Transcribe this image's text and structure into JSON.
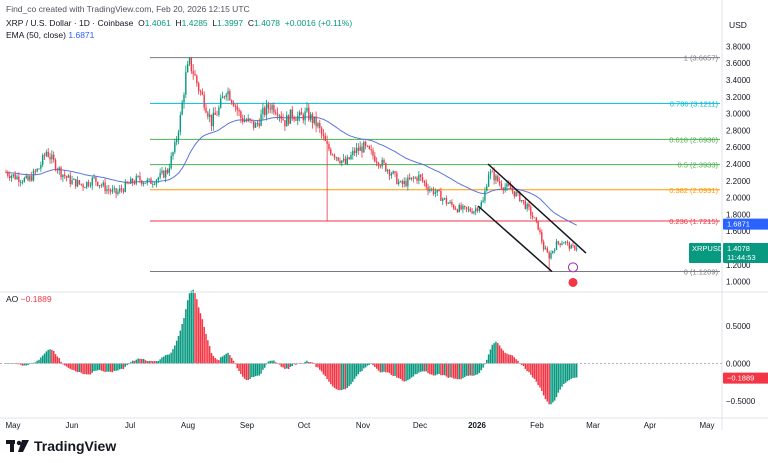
{
  "header": {
    "created": "Find_co created with TradingView.com, Feb 20, 2026 12:15 UTC",
    "symbol": "XRP / U.S. Dollar · 1D · Coinbase",
    "o_label": "O",
    "o": "1.4061",
    "h_label": "H",
    "h": "1.4285",
    "l_label": "L",
    "l": "1.3997",
    "c_label": "C",
    "c": "1.4078",
    "change": "+0.0016 (+0.11%)",
    "ema_label": "EMA (50, close)",
    "ema_value": "1.6871",
    "ao_label": "AO",
    "ao_value": "−0.1889",
    "currency": "USD"
  },
  "brand": "TradingView",
  "colors": {
    "up": "#089981",
    "down": "#f23645",
    "ema": "#5b74e0",
    "fib_1": "#787b86",
    "fib_786": "#00bcd4",
    "fib_618": "#4caf50",
    "fib_5": "#4caf50",
    "fib_382": "#ff9800",
    "fib_236": "#f23645",
    "fib_0": "#787b86",
    "price_label": "#2962ff",
    "symbol_tag": "#089981",
    "ao_tag": "#f23645"
  },
  "chart_data": {
    "type": "candlestick",
    "x_axis_labels": [
      "May",
      "Jun",
      "Jul",
      "Aug",
      "Sep",
      "Oct",
      "Nov",
      "Dec",
      "2026",
      "Feb",
      "Mar",
      "Apr",
      "May"
    ],
    "price_axis": {
      "ylim": [
        0.9,
        3.9
      ],
      "ticks": [
        "1.0000",
        "1.2000",
        "1.4000",
        "1.6000",
        "1.8000",
        "2.0000",
        "2.2000",
        "2.4000",
        "2.6000",
        "2.8000",
        "3.0000",
        "3.2000",
        "3.4000",
        "3.6000",
        "3.8000"
      ]
    },
    "fib_levels": [
      {
        "label": "1 (3.6657)",
        "value": 3.6657,
        "color": "#787b86"
      },
      {
        "label": "0.786 (3.1211)",
        "value": 3.1211,
        "color": "#00bcd4"
      },
      {
        "label": "0.618 (2.6936)",
        "value": 2.6936,
        "color": "#4caf50"
      },
      {
        "label": "0.5 (2.3933)",
        "value": 2.3933,
        "color": "#4caf50"
      },
      {
        "label": "0.382 (2.0931)",
        "value": 2.0931,
        "color": "#ff9800"
      },
      {
        "label": "0.236 (1.7215)",
        "value": 1.7215,
        "color": "#f23645"
      },
      {
        "label": "0 (1.1209)",
        "value": 1.1209,
        "color": "#787b86"
      }
    ],
    "price_path": [
      [
        0,
        2.3
      ],
      [
        5,
        2.25
      ],
      [
        12,
        2.2
      ],
      [
        18,
        2.35
      ],
      [
        22,
        2.55
      ],
      [
        26,
        2.42
      ],
      [
        30,
        2.3
      ],
      [
        35,
        2.2
      ],
      [
        42,
        2.15
      ],
      [
        48,
        2.22
      ],
      [
        55,
        2.1
      ],
      [
        60,
        2.05
      ],
      [
        66,
        2.15
      ],
      [
        72,
        2.22
      ],
      [
        78,
        2.18
      ],
      [
        84,
        2.25
      ],
      [
        88,
        2.32
      ],
      [
        92,
        2.6
      ],
      [
        95,
        2.95
      ],
      [
        98,
        3.45
      ],
      [
        100,
        3.6
      ],
      [
        102,
        3.5
      ],
      [
        105,
        3.3
      ],
      [
        108,
        3.15
      ],
      [
        112,
        2.9
      ],
      [
        116,
        3.05
      ],
      [
        120,
        3.3
      ],
      [
        124,
        3.15
      ],
      [
        128,
        2.95
      ],
      [
        132,
        2.9
      ],
      [
        136,
        2.85
      ],
      [
        140,
        3.0
      ],
      [
        144,
        3.1
      ],
      [
        148,
        3.05
      ],
      [
        152,
        2.9
      ],
      [
        156,
        3.0
      ],
      [
        160,
        2.95
      ],
      [
        164,
        3.0
      ],
      [
        170,
        2.85
      ],
      [
        175,
        2.6
      ],
      [
        180,
        2.5
      ],
      [
        185,
        2.4
      ],
      [
        190,
        2.55
      ],
      [
        195,
        2.6
      ],
      [
        200,
        2.5
      ],
      [
        205,
        2.4
      ],
      [
        210,
        2.3
      ],
      [
        215,
        2.15
      ],
      [
        220,
        2.2
      ],
      [
        225,
        2.25
      ],
      [
        230,
        2.12
      ],
      [
        235,
        2.05
      ],
      [
        240,
        1.95
      ],
      [
        245,
        1.88
      ],
      [
        250,
        1.85
      ],
      [
        255,
        1.85
      ],
      [
        260,
        1.95
      ],
      [
        263,
        2.3
      ],
      [
        266,
        2.25
      ],
      [
        270,
        2.15
      ],
      [
        275,
        2.1
      ],
      [
        280,
        2.0
      ],
      [
        285,
        1.85
      ],
      [
        290,
        1.65
      ],
      [
        293,
        1.4
      ],
      [
        296,
        1.3
      ],
      [
        300,
        1.45
      ],
      [
        304,
        1.48
      ],
      [
        308,
        1.4
      ],
      [
        311,
        1.41
      ]
    ],
    "last_price": {
      "symbol": "XRPUSD",
      "value": "1.4078",
      "countdown": "11:44:53"
    },
    "ema_tag": "1.6871",
    "ao_axis": {
      "ticks": [
        "0.5000",
        "0.0000",
        "−0.5000"
      ],
      "ylim": [
        -0.65,
        0.85
      ]
    },
    "ao_last_tag": "−0.1889"
  }
}
